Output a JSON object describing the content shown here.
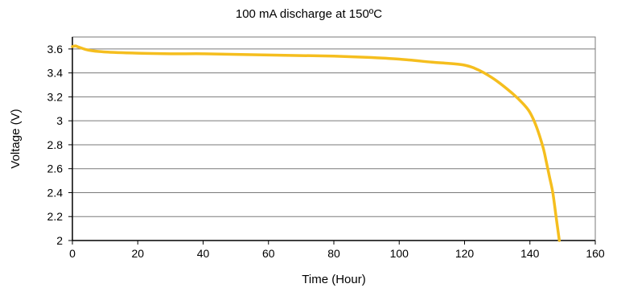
{
  "chart_data": {
    "type": "line",
    "title": "100 mA discharge at 150ºC",
    "xlabel": "Time (Hour)",
    "ylabel": "Voltage (V)",
    "xlim": [
      0,
      160
    ],
    "ylim": [
      2,
      3.7
    ],
    "x_ticks": [
      0,
      20,
      40,
      60,
      80,
      100,
      120,
      140,
      160
    ],
    "x_tick_labels": [
      "0",
      "20",
      "40",
      "60",
      "80",
      "100",
      "120",
      "140",
      "160"
    ],
    "y_ticks": [
      2,
      2.2,
      2.4,
      2.6,
      2.8,
      3,
      3.2,
      3.4,
      3.6
    ],
    "y_tick_labels": [
      "2",
      "2.2",
      "2.4",
      "2.6",
      "2.8",
      "3",
      "3.2",
      "3.4",
      "3.6"
    ],
    "grid": {
      "horizontal": true,
      "vertical": false
    },
    "legend": "none",
    "series": [
      {
        "color": "#F5BE1E",
        "x": [
          0,
          1,
          2,
          5,
          10,
          20,
          30,
          40,
          50,
          60,
          70,
          80,
          90,
          100,
          110,
          115,
          120,
          123,
          126,
          130,
          135,
          138,
          140,
          142,
          144,
          145,
          146,
          147,
          148,
          149
        ],
        "y": [
          3.62,
          3.625,
          3.615,
          3.59,
          3.575,
          3.565,
          3.56,
          3.56,
          3.555,
          3.55,
          3.545,
          3.54,
          3.53,
          3.515,
          3.49,
          3.48,
          3.465,
          3.44,
          3.4,
          3.33,
          3.22,
          3.14,
          3.07,
          2.95,
          2.78,
          2.66,
          2.53,
          2.4,
          2.2,
          2.0
        ]
      }
    ]
  }
}
